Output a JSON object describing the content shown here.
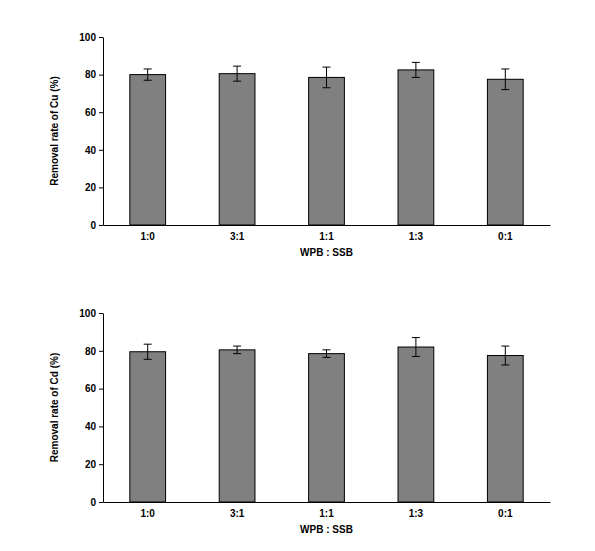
{
  "chart_data": [
    {
      "type": "bar",
      "y_label": "Removal rate of Cu (%)",
      "x_label": "WPB : SSB",
      "categories": [
        "1:0",
        "3:1",
        "1:1",
        "1:3",
        "0:1"
      ],
      "values": [
        80,
        80.5,
        78.5,
        82.5,
        77.5
      ],
      "errors": [
        3,
        4,
        5.5,
        4,
        5.5
      ],
      "color": "#808080",
      "ylim": [
        0,
        100
      ],
      "yticks": [
        0,
        20,
        40,
        60,
        80,
        100
      ],
      "grid": false
    },
    {
      "type": "bar",
      "y_label": "Removal rate of Cd (%)",
      "x_label": "WPB : SSB",
      "categories": [
        "1:0",
        "3:1",
        "1:1",
        "1:3",
        "0:1"
      ],
      "values": [
        79.5,
        80.5,
        78.5,
        82,
        77.5
      ],
      "errors": [
        4,
        2,
        2,
        5,
        5
      ],
      "color": "#808080",
      "ylim": [
        0,
        100
      ],
      "yticks": [
        0,
        20,
        40,
        60,
        80,
        100
      ],
      "grid": false
    }
  ]
}
